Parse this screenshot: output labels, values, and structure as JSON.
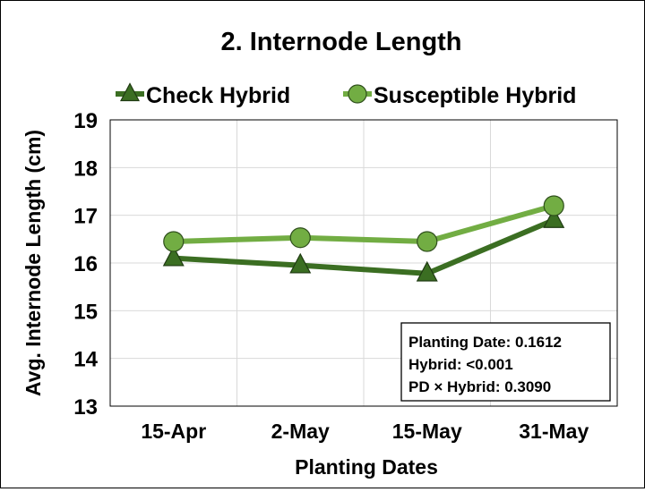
{
  "chart_data": {
    "type": "line",
    "title": "2. Internode Length",
    "xlabel": "Planting Dates",
    "ylabel": "Avg. Internode Length (cm)",
    "categories": [
      "15-Apr",
      "2-May",
      "15-May",
      "31-May"
    ],
    "ylim": [
      13,
      19
    ],
    "yticks": [
      13,
      14,
      15,
      16,
      17,
      18,
      19
    ],
    "grid": true,
    "legend": "top",
    "series": [
      {
        "name": "Check Hybrid",
        "marker": "triangle",
        "color": "#3b6e22",
        "values": [
          16.1,
          15.95,
          15.78,
          16.9
        ]
      },
      {
        "name": "Susceptible Hybrid",
        "marker": "circle",
        "color": "#72ad43",
        "values": [
          16.45,
          16.53,
          16.45,
          17.2
        ]
      }
    ],
    "annotation": [
      "Planting Date: 0.1612",
      "Hybrid: <0.001",
      "PD × Hybrid: 0.3090"
    ]
  }
}
